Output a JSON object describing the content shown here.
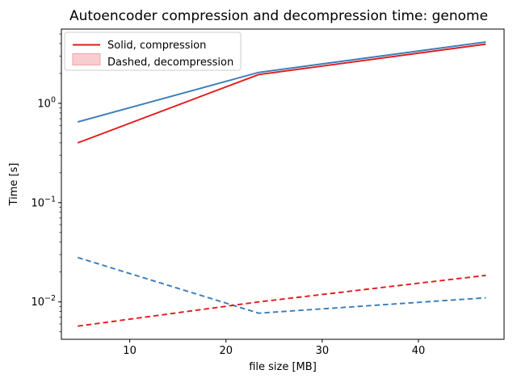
{
  "chart_data": {
    "type": "line",
    "title": "Autoencoder compression and decompression time: genome",
    "xlabel": "file size [MB]",
    "ylabel": "Time [s]",
    "x_scale": "linear",
    "y_scale": "log",
    "xlim": [
      2.9,
      48.9
    ],
    "ylim": [
      0.0042,
      5.6
    ],
    "x_ticks": [
      10,
      20,
      30,
      40
    ],
    "y_tick_exponents": [
      0,
      -1,
      -2
    ],
    "grid": false,
    "legend": {
      "position": "upper-left",
      "entries": [
        {
          "label": "Solid, compression",
          "marker": "line",
          "color": "#e41a1c"
        },
        {
          "label": "Dashed, decompression",
          "marker": "patch",
          "fill": "#f8cdd0",
          "edge": "#eda4aa"
        }
      ]
    },
    "series": [
      {
        "name": "compression-blue",
        "role": "compression",
        "style": "solid",
        "color": "#3a7cb8",
        "x": [
          4.6,
          23.4,
          47
        ],
        "y": [
          0.65,
          2.05,
          4.15
        ]
      },
      {
        "name": "compression-red",
        "role": "compression",
        "style": "solid",
        "color": "#e41a1c",
        "x": [
          4.6,
          23.4,
          47
        ],
        "y": [
          0.4,
          1.95,
          3.95
        ]
      },
      {
        "name": "decompression-blue",
        "role": "decompression",
        "style": "dashed",
        "color": "#3a7cb8",
        "x": [
          4.6,
          23.4,
          47
        ],
        "y": [
          0.028,
          0.0077,
          0.011
        ]
      },
      {
        "name": "decompression-red",
        "role": "decompression",
        "style": "dashed",
        "color": "#e41a1c",
        "x": [
          4.6,
          23.4,
          47
        ],
        "y": [
          0.0057,
          0.01,
          0.0185
        ]
      }
    ]
  }
}
